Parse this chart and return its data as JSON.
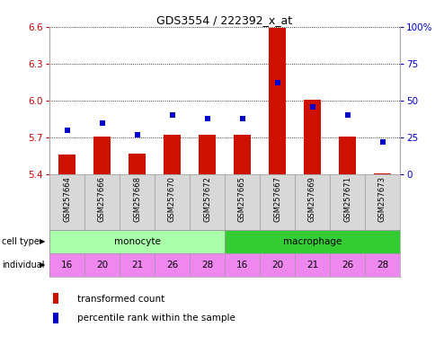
{
  "title": "GDS3554 / 222392_x_at",
  "samples": [
    "GSM257664",
    "GSM257666",
    "GSM257668",
    "GSM257670",
    "GSM257672",
    "GSM257665",
    "GSM257667",
    "GSM257669",
    "GSM257671",
    "GSM257673"
  ],
  "red_values": [
    5.56,
    5.71,
    5.57,
    5.72,
    5.72,
    5.72,
    6.59,
    6.01,
    5.71,
    5.41
  ],
  "blue_values": [
    30,
    35,
    27,
    40,
    38,
    38,
    62,
    46,
    40,
    22
  ],
  "ylim_left": [
    5.4,
    6.6
  ],
  "ylim_right": [
    0,
    100
  ],
  "yticks_left": [
    5.4,
    5.7,
    6.0,
    6.3,
    6.6
  ],
  "yticks_right": [
    0,
    25,
    50,
    75,
    100
  ],
  "ytick_labels_right": [
    "0",
    "25",
    "50",
    "75",
    "100%"
  ],
  "individuals": [
    16,
    20,
    21,
    26,
    28,
    16,
    20,
    21,
    26,
    28
  ],
  "monocyte_color": "#aaffaa",
  "macrophage_color": "#33cc33",
  "individual_color": "#ee88ee",
  "bar_color": "#cc1100",
  "dot_color": "#0000cc",
  "left_axis_color": "#cc0000",
  "right_axis_color": "#0000cc",
  "bar_width": 0.5,
  "n_monocyte": 5,
  "n_macrophage": 5
}
